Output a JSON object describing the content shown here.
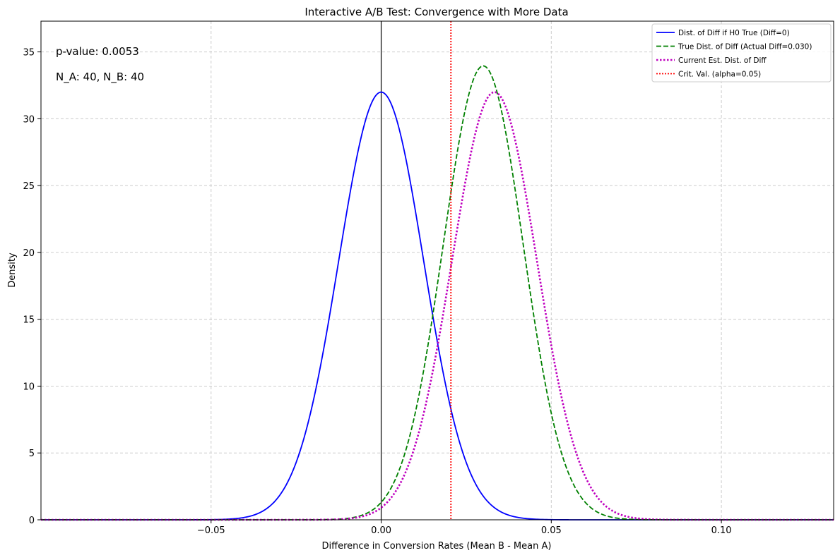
{
  "chart_data": {
    "type": "line",
    "title": "Interactive A/B Test: Convergence with More Data",
    "xlabel": "Difference in Conversion Rates (Mean B - Mean A)",
    "ylabel": "Density",
    "xlim": [
      -0.1,
      0.133
    ],
    "ylim": [
      0,
      37.3
    ],
    "x_ticks": [
      -0.05,
      0.0,
      0.05,
      0.1
    ],
    "x_tick_labels": [
      "−0.05",
      "0.00",
      "0.05",
      "0.10"
    ],
    "y_ticks": [
      0,
      5,
      10,
      15,
      20,
      25,
      30,
      35
    ],
    "y_tick_labels": [
      "0",
      "5",
      "10",
      "15",
      "20",
      "25",
      "30",
      "35"
    ],
    "grid": true,
    "legend_position": "top-right",
    "annotations": [
      {
        "text": "p-value: 0.0053"
      },
      {
        "text": "N_A: 40, N_B: 40"
      }
    ],
    "series": [
      {
        "name": "Dist. of Diff if H0 True (Diff=0)",
        "kind": "normal",
        "mean": 0.0,
        "sd": 0.01247,
        "color": "#0000ff",
        "style": "solid"
      },
      {
        "name": "True Dist. of Diff (Actual Diff=0.030)",
        "kind": "normal",
        "mean": 0.03,
        "sd": 0.01175,
        "color": "#008000",
        "style": "dashed"
      },
      {
        "name": "Current Est. Dist. of Diff",
        "kind": "normal",
        "mean": 0.0333,
        "sd": 0.01247,
        "color": "#bf00bf",
        "style": "dotted"
      },
      {
        "name": "Crit. Val. (alpha=0.05)",
        "kind": "vline",
        "x": 0.0205,
        "color": "#ff0000",
        "style": "dotted"
      }
    ],
    "reference_lines": [
      {
        "kind": "vline",
        "x": 0.0,
        "color": "#000000",
        "style": "solid"
      }
    ]
  }
}
